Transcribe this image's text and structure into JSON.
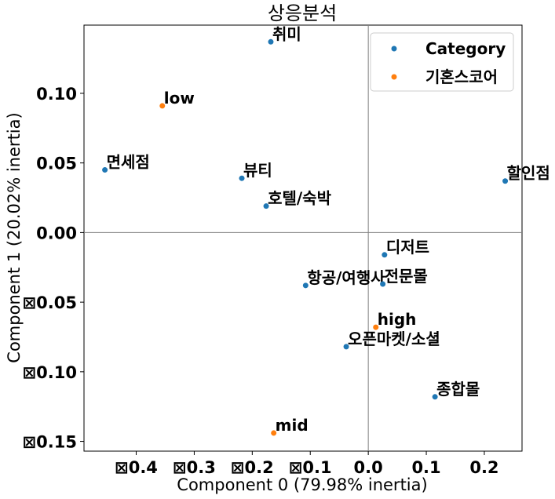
{
  "chart_data": {
    "type": "scatter",
    "title": "상응분석",
    "xlabel": "Component 0 (79.98% inertia)",
    "ylabel": "Component 1 (20.02% inertia)",
    "xlim": [
      -0.49,
      0.265
    ],
    "ylim": [
      -0.157,
      0.149
    ],
    "x_ticks": [
      {
        "value": -0.4,
        "label": "⊠0.4"
      },
      {
        "value": -0.3,
        "label": "⊠0.3"
      },
      {
        "value": -0.2,
        "label": "⊠0.2"
      },
      {
        "value": -0.1,
        "label": "⊠0.1"
      },
      {
        "value": 0.0,
        "label": "0.0"
      },
      {
        "value": 0.1,
        "label": "0.1"
      },
      {
        "value": 0.2,
        "label": "0.2"
      }
    ],
    "y_ticks": [
      {
        "value": 0.1,
        "label": "0.10"
      },
      {
        "value": 0.05,
        "label": "0.05"
      },
      {
        "value": 0.0,
        "label": "0.00"
      },
      {
        "value": -0.05,
        "label": "⊠0.05"
      },
      {
        "value": -0.1,
        "label": "⊠0.10"
      },
      {
        "value": -0.15,
        "label": "⊠0.15"
      }
    ],
    "reference_lines": {
      "x": 0,
      "y": 0
    },
    "grid": false,
    "legend_position": "top-right",
    "series": [
      {
        "name": "Category",
        "color": "#1f77b4",
        "points": [
          {
            "label": "취미",
            "x": -0.168,
            "y": 0.137
          },
          {
            "label": "면세점",
            "x": -0.454,
            "y": 0.045
          },
          {
            "label": "뷰티",
            "x": -0.218,
            "y": 0.039
          },
          {
            "label": "호텔/숙박",
            "x": -0.176,
            "y": 0.019
          },
          {
            "label": "할인점",
            "x": 0.236,
            "y": 0.037
          },
          {
            "label": "디저트",
            "x": 0.028,
            "y": -0.016
          },
          {
            "label": "항공/여행사",
            "x": -0.108,
            "y": -0.038
          },
          {
            "label": "전문몰",
            "x": 0.025,
            "y": -0.037
          },
          {
            "label": "오픈마켓/소셜",
            "x": -0.038,
            "y": -0.082
          },
          {
            "label": "종합몰",
            "x": 0.115,
            "y": -0.118
          }
        ]
      },
      {
        "name": "기혼스코어",
        "color": "#ff7f0e",
        "points": [
          {
            "label": "low",
            "x": -0.355,
            "y": 0.091
          },
          {
            "label": "high",
            "x": 0.013,
            "y": -0.068
          },
          {
            "label": "mid",
            "x": -0.163,
            "y": -0.144
          }
        ]
      }
    ]
  }
}
